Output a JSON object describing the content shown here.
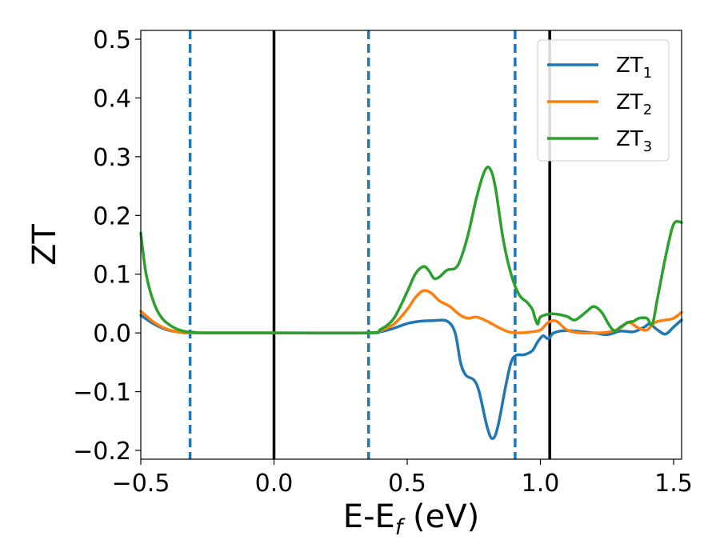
{
  "chart_data": {
    "type": "line",
    "xlabel": "E-E",
    "xlabel_sub": "f",
    "xlabel_unit": " (eV)",
    "ylabel": "ZT",
    "xlim": [
      -0.5,
      1.53
    ],
    "ylim": [
      -0.215,
      0.515
    ],
    "xticks": [
      -0.5,
      0.0,
      0.5,
      1.0,
      1.5
    ],
    "xtick_labels": [
      "−0.5",
      "0.0",
      "0.5",
      "1.0",
      "1.5"
    ],
    "yticks": [
      -0.2,
      -0.1,
      0.0,
      0.1,
      0.2,
      0.3,
      0.4,
      0.5
    ],
    "ytick_labels": [
      "−0.2",
      "−0.1",
      "0.0",
      "0.1",
      "0.2",
      "0.3",
      "0.4",
      "0.5"
    ],
    "grid": false,
    "legend_position": "top-right",
    "vlines": [
      {
        "x": 0.0,
        "style": "solid",
        "color": "#000000"
      },
      {
        "x": 1.035,
        "style": "solid",
        "color": "#000000"
      },
      {
        "x": -0.315,
        "style": "dashed",
        "color": "#1f77b4"
      },
      {
        "x": 0.355,
        "style": "dashed",
        "color": "#1f77b4"
      },
      {
        "x": 0.905,
        "style": "dashed",
        "color": "#1f77b4"
      }
    ],
    "series": [
      {
        "name": "ZT",
        "sub": "1",
        "color": "#1f77b4",
        "points": [
          [
            -0.5,
            0.03
          ],
          [
            -0.45,
            0.015
          ],
          [
            -0.4,
            0.005
          ],
          [
            -0.35,
            0.001
          ],
          [
            -0.3,
            0.0
          ],
          [
            0.0,
            0.0
          ],
          [
            0.35,
            0.0
          ],
          [
            0.4,
            0.002
          ],
          [
            0.45,
            0.008
          ],
          [
            0.5,
            0.016
          ],
          [
            0.55,
            0.02
          ],
          [
            0.6,
            0.021
          ],
          [
            0.65,
            0.02
          ],
          [
            0.68,
            0.0
          ],
          [
            0.7,
            -0.05
          ],
          [
            0.72,
            -0.072
          ],
          [
            0.75,
            -0.08
          ],
          [
            0.77,
            -0.1
          ],
          [
            0.8,
            -0.16
          ],
          [
            0.82,
            -0.18
          ],
          [
            0.84,
            -0.16
          ],
          [
            0.87,
            -0.09
          ],
          [
            0.89,
            -0.05
          ],
          [
            0.91,
            -0.038
          ],
          [
            0.94,
            -0.037
          ],
          [
            0.97,
            -0.03
          ],
          [
            0.99,
            -0.015
          ],
          [
            1.01,
            -0.005
          ],
          [
            1.03,
            -0.01
          ],
          [
            1.05,
            0.0
          ],
          [
            1.1,
            0.004
          ],
          [
            1.2,
            0.0
          ],
          [
            1.25,
            -0.003
          ],
          [
            1.3,
            0.003
          ],
          [
            1.35,
            0.002
          ],
          [
            1.39,
            0.01
          ],
          [
            1.41,
            0.015
          ],
          [
            1.44,
            0.005
          ],
          [
            1.47,
            -0.002
          ],
          [
            1.5,
            0.01
          ],
          [
            1.53,
            0.022
          ]
        ]
      },
      {
        "name": "ZT",
        "sub": "2",
        "color": "#ff7f0e",
        "points": [
          [
            -0.5,
            0.037
          ],
          [
            -0.45,
            0.018
          ],
          [
            -0.4,
            0.006
          ],
          [
            -0.35,
            0.001
          ],
          [
            -0.3,
            0.0
          ],
          [
            0.0,
            0.0
          ],
          [
            0.35,
            0.0
          ],
          [
            0.4,
            0.004
          ],
          [
            0.45,
            0.015
          ],
          [
            0.5,
            0.04
          ],
          [
            0.53,
            0.06
          ],
          [
            0.56,
            0.072
          ],
          [
            0.59,
            0.068
          ],
          [
            0.62,
            0.055
          ],
          [
            0.66,
            0.045
          ],
          [
            0.7,
            0.03
          ],
          [
            0.73,
            0.025
          ],
          [
            0.76,
            0.027
          ],
          [
            0.8,
            0.02
          ],
          [
            0.84,
            0.01
          ],
          [
            0.88,
            0.002
          ],
          [
            0.92,
            0.0
          ],
          [
            0.97,
            0.002
          ],
          [
            1.0,
            0.005
          ],
          [
            1.03,
            0.018
          ],
          [
            1.06,
            0.02
          ],
          [
            1.1,
            0.005
          ],
          [
            1.15,
            0.0
          ],
          [
            1.2,
            0.0
          ],
          [
            1.25,
            0.001
          ],
          [
            1.3,
            0.008
          ],
          [
            1.33,
            0.018
          ],
          [
            1.37,
            0.008
          ],
          [
            1.4,
            0.005
          ],
          [
            1.43,
            0.018
          ],
          [
            1.47,
            0.022
          ],
          [
            1.5,
            0.025
          ],
          [
            1.53,
            0.035
          ]
        ]
      },
      {
        "name": "ZT",
        "sub": "3",
        "color": "#2ca02c",
        "points": [
          [
            -0.5,
            0.17
          ],
          [
            -0.48,
            0.1
          ],
          [
            -0.45,
            0.05
          ],
          [
            -0.42,
            0.025
          ],
          [
            -0.38,
            0.01
          ],
          [
            -0.34,
            0.003
          ],
          [
            -0.3,
            0.001
          ],
          [
            -0.25,
            0.0
          ],
          [
            0.0,
            0.0
          ],
          [
            0.35,
            0.0
          ],
          [
            0.4,
            0.006
          ],
          [
            0.45,
            0.025
          ],
          [
            0.5,
            0.07
          ],
          [
            0.53,
            0.1
          ],
          [
            0.56,
            0.113
          ],
          [
            0.58,
            0.107
          ],
          [
            0.6,
            0.093
          ],
          [
            0.62,
            0.095
          ],
          [
            0.65,
            0.107
          ],
          [
            0.68,
            0.11
          ],
          [
            0.7,
            0.125
          ],
          [
            0.73,
            0.17
          ],
          [
            0.76,
            0.23
          ],
          [
            0.79,
            0.275
          ],
          [
            0.81,
            0.28
          ],
          [
            0.83,
            0.25
          ],
          [
            0.86,
            0.16
          ],
          [
            0.89,
            0.1
          ],
          [
            0.92,
            0.065
          ],
          [
            0.95,
            0.052
          ],
          [
            0.97,
            0.04
          ],
          [
            0.98,
            0.025
          ],
          [
            0.99,
            0.015
          ],
          [
            1.0,
            0.027
          ],
          [
            1.03,
            0.032
          ],
          [
            1.06,
            0.032
          ],
          [
            1.1,
            0.028
          ],
          [
            1.13,
            0.022
          ],
          [
            1.17,
            0.035
          ],
          [
            1.2,
            0.045
          ],
          [
            1.23,
            0.035
          ],
          [
            1.26,
            0.012
          ],
          [
            1.28,
            0.003
          ],
          [
            1.3,
            0.01
          ],
          [
            1.33,
            0.018
          ],
          [
            1.35,
            0.02
          ],
          [
            1.37,
            0.025
          ],
          [
            1.4,
            0.025
          ],
          [
            1.42,
            0.015
          ],
          [
            1.44,
            0.06
          ],
          [
            1.47,
            0.13
          ],
          [
            1.5,
            0.185
          ],
          [
            1.53,
            0.188
          ]
        ]
      }
    ]
  }
}
